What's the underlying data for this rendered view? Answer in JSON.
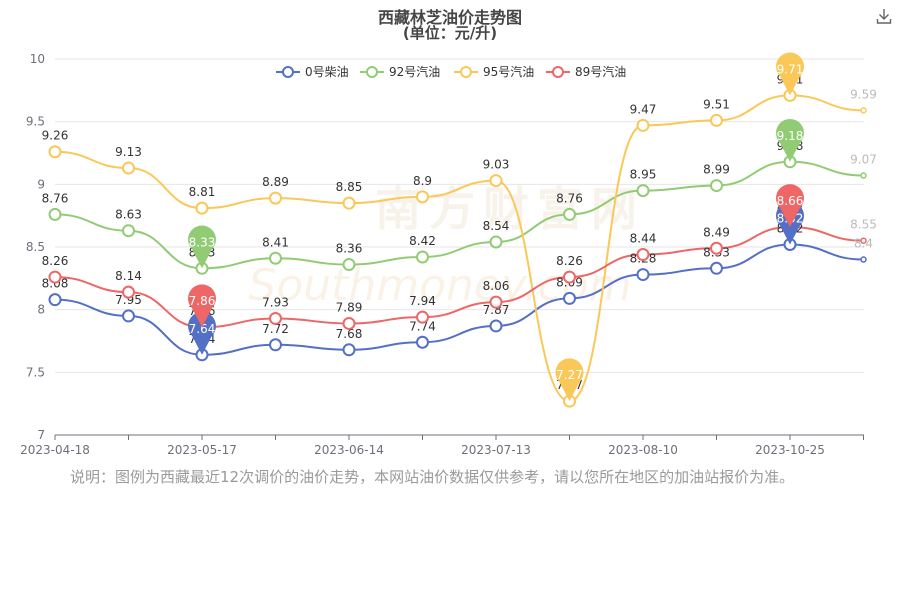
{
  "chart_data": {
    "type": "line",
    "title": "西藏林芝油价走势图",
    "subtitle": "(单位：元/升)",
    "x": [
      "2023-04-18",
      "",
      "2023-05-17",
      "",
      "2023-06-14",
      "",
      "2023-07-13",
      "",
      "2023-08-10",
      "",
      "2023-10-25",
      ""
    ],
    "xlabel": "",
    "ylabel": "",
    "ylim": [
      7,
      10
    ],
    "yticks": [
      7,
      7.5,
      8,
      8.5,
      9,
      9.5,
      10
    ],
    "grid": true,
    "legend_position": "top-center",
    "series": [
      {
        "name": "0号柴油",
        "color": "#5470c6",
        "values": [
          8.08,
          7.95,
          7.64,
          7.72,
          7.68,
          7.74,
          7.87,
          8.09,
          8.28,
          8.33,
          8.52,
          8.4
        ],
        "max_index": 10,
        "min_index": 2
      },
      {
        "name": "92号汽油",
        "color": "#91cc75",
        "values": [
          8.76,
          8.63,
          8.33,
          8.41,
          8.36,
          8.42,
          8.54,
          8.76,
          8.95,
          8.99,
          9.18,
          9.07
        ],
        "max_index": 10,
        "min_index": 2
      },
      {
        "name": "95号汽油",
        "color": "#fac858",
        "values": [
          9.26,
          9.13,
          8.81,
          8.89,
          8.85,
          8.9,
          9.03,
          7.27,
          9.47,
          9.51,
          9.71,
          9.59
        ],
        "max_index": 10,
        "min_index": 7
      },
      {
        "name": "89号汽油",
        "color": "#ee6666",
        "values": [
          8.26,
          8.14,
          7.86,
          7.93,
          7.89,
          7.94,
          8.06,
          8.26,
          8.44,
          8.49,
          8.66,
          8.55
        ],
        "max_index": 10,
        "min_index": 2
      }
    ]
  },
  "watermark": {
    "cn": "南方财富网",
    "en": "Southmoney.com"
  },
  "note": "说明：图例为西藏最近12次调价的油价走势，本网站油价数据仅供参考，请以您所在地区的加油站报价为准。",
  "toolbar": {
    "download_icon": "download-icon"
  }
}
